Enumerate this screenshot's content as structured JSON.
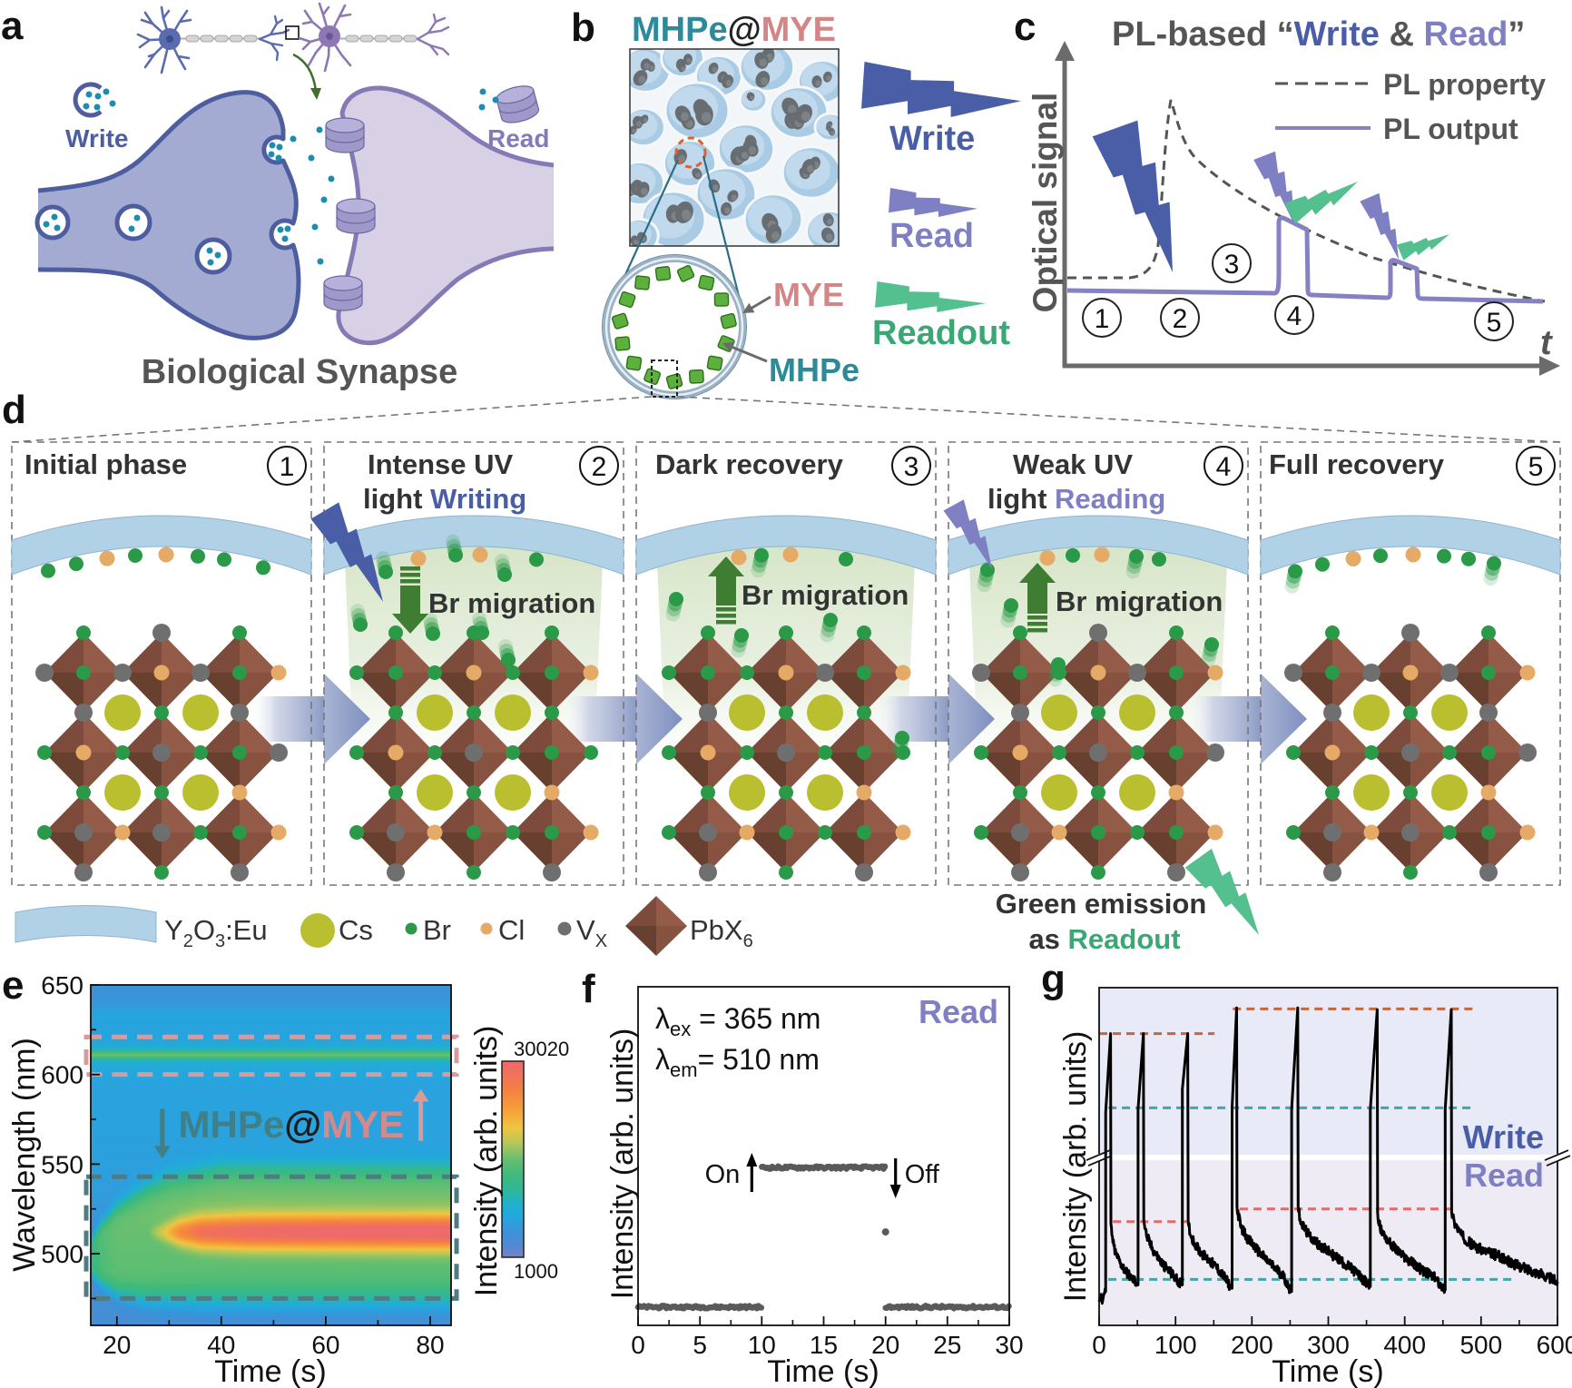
{
  "panel_labels": {
    "a": "a",
    "b": "b",
    "c": "c",
    "d": "d",
    "e": "e",
    "f": "f",
    "g": "g"
  },
  "colors": {
    "write": "#4a5ea8",
    "read": "#7f7fc4",
    "readout_text": "#3aa774",
    "readout_bolt": "#55c08f",
    "mhpe": "#2d8b99",
    "mye": "#d48585",
    "text_dark": "#333333",
    "text_grey": "#555555",
    "br": "#2a9a48",
    "cl": "#e5aa66",
    "vx": "#6f6f6f",
    "cs": "#b9bf2e",
    "coating": "#b1d1e6",
    "presynaptic": "#a3abd3",
    "postsynaptic": "#d8d0e4",
    "neurotransmitter": "#1c8db0"
  },
  "panel_a": {
    "write_label": "Write",
    "read_label": "Read",
    "caption": "Biological Synapse"
  },
  "panel_b": {
    "title": [
      "MHPe",
      "@",
      "MYE"
    ],
    "mye_label": "MYE",
    "mhpe_label": "MHPe",
    "write_label": "Write",
    "read_label": "Read",
    "readout_label": "Readout"
  },
  "panel_c": {
    "title": [
      "PL-based “",
      "Write",
      " & ",
      "Read",
      "”"
    ],
    "y_axis_label": "Optical signal",
    "x_axis_label": "t",
    "legend": [
      {
        "label": "PL property",
        "style": "dashed"
      },
      {
        "label": "PL output",
        "style": "solid"
      }
    ],
    "step_numbers": [
      "1",
      "2",
      "3",
      "4",
      "5"
    ]
  },
  "panel_d": {
    "migration_label": "Br migration",
    "stages": [
      {
        "number": "1",
        "title_line1": "Initial phase",
        "title_line2": null,
        "title_highlight": null,
        "light": null,
        "br_migration": null,
        "surface_atoms": "GGCGCGGG",
        "lattice": {
          "top": "GVG",
          "row1": "VGVCVGC",
          "j12": "VGV",
          "row2": "GCGVGGV",
          "j23": "GGC",
          "row3": "GVCVGGC",
          "bottom": "VGV"
        }
      },
      {
        "number": "2",
        "title_line1": "Intense UV",
        "title_line2": "light ",
        "title_highlight": "Writing",
        "light": "intense UV",
        "br_migration": "down",
        "surface_atoms": "CGCG",
        "lattice": {
          "top": "GGG",
          "row1": "GGGCGGC",
          "j12": "GGG",
          "row2": "GCGVGGG",
          "j23": "GGC",
          "row3": "GVCGGGC",
          "bottom": "VGV"
        }
      },
      {
        "number": "3",
        "title_line1": "Dark recovery",
        "title_line2": null,
        "title_highlight": null,
        "light": null,
        "br_migration": "up",
        "surface_atoms": "CGCG",
        "lattice": {
          "top": "GGG",
          "row1": "GGGCVGC",
          "j12": "VGG",
          "row2": "GCGVGGG",
          "j23": "GGC",
          "row3": "GVCGGGC",
          "bottom": "VGV"
        }
      },
      {
        "number": "4",
        "title_line1": "Weak UV",
        "title_line2": "light ",
        "title_highlight": "Reading",
        "light": "weak UV",
        "br_migration": "up",
        "surface_atoms": "GCGCGG",
        "lattice": {
          "top": "GVG",
          "row1": "VGGCVGC",
          "j12": "VGG",
          "row2": "GCGVGGV",
          "j23": "GGC",
          "row3": "GVCGGGC",
          "bottom": "VGV"
        }
      },
      {
        "number": "5",
        "title_line1": "Full recovery",
        "title_line2": null,
        "title_highlight": null,
        "light": null,
        "br_migration": null,
        "surface_atoms": "GGCGCGGG",
        "lattice": {
          "top": "GVG",
          "row1": "VGVCVGC",
          "j12": "VGV",
          "row2": "GCGVGGV",
          "j23": "GGC",
          "row3": "GVCVGGC",
          "bottom": "VGV"
        }
      }
    ],
    "legend": {
      "coating": [
        "Y",
        "2",
        "O",
        "3",
        ":Eu"
      ],
      "cs": "Cs",
      "br": "Br",
      "cl": "Cl",
      "vx": [
        "V",
        "X"
      ],
      "pbx6": [
        "PbX",
        "6"
      ]
    },
    "green_emission": {
      "line1": "Green emission",
      "line2_prefix": "as ",
      "line2_highlight": "Readout"
    }
  },
  "chart_data": [
    {
      "panel": "e",
      "type": "heatmap",
      "title": "",
      "xlabel": "Time (s)",
      "ylabel": "Wavelength (nm)",
      "xlim": [
        15,
        84
      ],
      "ylim": [
        460,
        650
      ],
      "xticks": [
        20,
        40,
        60,
        80
      ],
      "x_minor_ticks": [
        30,
        50,
        70
      ],
      "yticks": [
        500,
        550,
        600,
        650
      ],
      "y_minor_ticks": [
        475,
        525,
        575,
        625
      ],
      "colorbar": {
        "label": "Intensity (arb. units)",
        "min": 1000,
        "max": 30020,
        "stops": [
          [
            0,
            "#7584c5"
          ],
          [
            0.06,
            "#5289d2"
          ],
          [
            0.13,
            "#3c92d8"
          ],
          [
            0.2,
            "#25a6df"
          ],
          [
            0.27,
            "#21b0cf"
          ],
          [
            0.34,
            "#2fb79b"
          ],
          [
            0.42,
            "#40ba7b"
          ],
          [
            0.5,
            "#66bf70"
          ],
          [
            0.58,
            "#b3c75a"
          ],
          [
            0.66,
            "#f0c540"
          ],
          [
            0.75,
            "#f6a03a"
          ],
          [
            0.84,
            "#f4853f"
          ],
          [
            0.92,
            "#f17358"
          ],
          [
            1,
            "#ee6a6b"
          ]
        ]
      },
      "model": {
        "background": {
          "base": 3600,
          "hump_center_nm": 575,
          "hump_sigma_nm": 55,
          "hump_amplitude": 2800
        },
        "gaussian_bands": [
          {
            "name": "MYE Eu line",
            "center_nm": 611,
            "sigma_nm": 1.8,
            "amplitude": 7200
          },
          {
            "name": "MYE line halo",
            "center_nm": 611,
            "sigma_nm": 8,
            "amplitude": 2300
          },
          {
            "name": "weak band",
            "center_nm": 632,
            "sigma_nm": 4.5,
            "amplitude": 1400
          }
        ],
        "mhpe_broad": {
          "time_s": [
            15,
            17,
            20,
            25,
            30,
            40,
            84
          ],
          "center_nm": [
            498,
            500,
            502,
            505,
            508,
            510.5,
            510.5
          ],
          "half_width_nm": [
            8,
            14,
            20,
            25,
            28,
            30.5,
            30.5
          ],
          "amplitude": [
            7000,
            9500,
            10500,
            10500,
            10500,
            10500,
            10500
          ]
        },
        "mhpe_core": {
          "center_nm": 512,
          "time_s": [
            26,
            29,
            32,
            36,
            45,
            60,
            84
          ],
          "sigma_nm": [
            2,
            3.5,
            5,
            6,
            6.5,
            6.5,
            6.5
          ],
          "amplitude": [
            0,
            4000,
            9000,
            12500,
            14000,
            14800,
            15500
          ]
        }
      },
      "annotations": {
        "regions": [
          {
            "name": "mye-emission-region",
            "nm": [
              600,
              621
            ],
            "color": "#d69b9b"
          },
          {
            "name": "mhpe-emission-region",
            "nm": [
              475,
              543
            ],
            "color": "#4f7c83"
          }
        ],
        "arrows": [
          {
            "name": "mhpe-decrease-arrow",
            "time_s": 28.7,
            "from_nm": 581,
            "to_nm": 553,
            "color": "#3f7f88"
          },
          {
            "name": "mye-increase-arrow",
            "time_s": 78.2,
            "from_nm": 563,
            "to_nm": 592,
            "color": "#d69b9b"
          }
        ],
        "label": {
          "center_time_s": 53.4,
          "baseline_nm": 565,
          "parts": [
            {
              "text": "MHPe",
              "color": "#3f7f88"
            },
            {
              "text": "@",
              "color": "#1b1b1b"
            },
            {
              "text": "MYE",
              "color": "#d48a8a"
            }
          ]
        }
      }
    },
    {
      "panel": "f",
      "type": "scatter",
      "title": "",
      "xlabel": "Time (s)",
      "ylabel": "Intensity (arb. units)",
      "xlim": [
        0,
        30
      ],
      "xticks": [
        0,
        5,
        10,
        15,
        20,
        25,
        30
      ],
      "x_minor_ticks": [
        2.5,
        7.5,
        12.5,
        17.5,
        22.5,
        27.5
      ],
      "ylim": [
        0,
        1
      ],
      "yticks": [],
      "y_scale": "normalized to axis height (no tick labels shown)",
      "series": [
        {
          "name": "PL intensity",
          "color": "#5a5a5a",
          "segments": [
            {
              "x_range": [
                0,
                10
              ],
              "y": 0.054
            },
            {
              "x_range": [
                10,
                20
              ],
              "y": 0.466
            },
            {
              "x_range": [
                20,
                30
              ],
              "y": 0.054
            }
          ],
          "isolated_points": [
            [
              20,
              0.276
            ]
          ]
        }
      ],
      "annotations": {
        "excitation": {
          "symbol": "λ",
          "sub": "ex",
          "text": " = 365 nm"
        },
        "emission": {
          "symbol": "λ",
          "sub": "em",
          "text": "= 510 nm"
        },
        "mode_label": "Read",
        "on": {
          "label": "On",
          "time_s": 10
        },
        "off": {
          "label": "Off",
          "time_s": 20
        }
      }
    },
    {
      "panel": "g",
      "type": "line",
      "title": "",
      "xlabel": "Time (s)",
      "ylabel": "Intensity (arb. units)",
      "xlim": [
        0,
        600
      ],
      "xticks": [
        0,
        100,
        200,
        300,
        400,
        500,
        600
      ],
      "x_minor_ticks": [
        50,
        150,
        250,
        350,
        450,
        550
      ],
      "ylim": [
        0,
        1
      ],
      "yticks": [],
      "y_scale": "normalized to axis height (no tick labels shown)",
      "y_axis_break": [
        0.489,
        0.505
      ],
      "regions": [
        {
          "label": "Write",
          "y_range": [
            0.505,
            1
          ],
          "color": "#e8eaf7",
          "text_color": "#4a5ea8"
        },
        {
          "label": "Read",
          "y_range": [
            0,
            0.489
          ],
          "color": "#eeebf4",
          "text_color": "#7f7fc4"
        }
      ],
      "series": [
        {
          "name": "PL intensity",
          "color": "#000000",
          "points": [
            [
              0,
              0.07
            ],
            [
              2,
              0.09
            ],
            [
              4,
              0.065
            ],
            [
              6,
              0.09
            ],
            [
              8.5,
              0.1
            ],
            [
              8.5,
              0.63
            ],
            [
              15,
              0.864
            ],
            [
              15.5,
              0.3
            ],
            [
              18,
              0.245
            ],
            [
              22,
              0.21
            ],
            [
              28,
              0.185
            ],
            [
              35,
              0.16
            ],
            [
              42,
              0.14
            ],
            [
              50,
              0.125
            ],
            [
              51,
              0.12
            ],
            [
              51,
              0.64
            ],
            [
              58,
              0.864
            ],
            [
              58.5,
              0.31
            ],
            [
              62,
              0.265
            ],
            [
              70,
              0.225
            ],
            [
              80,
              0.19
            ],
            [
              90,
              0.165
            ],
            [
              100,
              0.14
            ],
            [
              108.5,
              0.12
            ],
            [
              109,
              0.12
            ],
            [
              109,
              0.7
            ],
            [
              116,
              0.864
            ],
            [
              116.5,
              0.31
            ],
            [
              120,
              0.265
            ],
            [
              130,
              0.225
            ],
            [
              140,
              0.2
            ],
            [
              150,
              0.18
            ],
            [
              160,
              0.155
            ],
            [
              173.5,
              0.11
            ],
            [
              174,
              0.11
            ],
            [
              174,
              0.645
            ],
            [
              180,
              0.94
            ],
            [
              180.5,
              0.35
            ],
            [
              185,
              0.295
            ],
            [
              195,
              0.255
            ],
            [
              210,
              0.215
            ],
            [
              225,
              0.18
            ],
            [
              240,
              0.15
            ],
            [
              251.5,
              0.1
            ],
            [
              252,
              0.1
            ],
            [
              252,
              0.64
            ],
            [
              260,
              0.94
            ],
            [
              260.5,
              0.345
            ],
            [
              265,
              0.3
            ],
            [
              275,
              0.265
            ],
            [
              290,
              0.235
            ],
            [
              305,
              0.21
            ],
            [
              320,
              0.185
            ],
            [
              335,
              0.16
            ],
            [
              354.5,
              0.115
            ],
            [
              355,
              0.115
            ],
            [
              355,
              0.64
            ],
            [
              364,
              0.935
            ],
            [
              364.5,
              0.335
            ],
            [
              368,
              0.285
            ],
            [
              380,
              0.245
            ],
            [
              395,
              0.21
            ],
            [
              410,
              0.185
            ],
            [
              425,
              0.16
            ],
            [
              440,
              0.14
            ],
            [
              452.5,
              0.105
            ],
            [
              453,
              0.105
            ],
            [
              453,
              0.64
            ],
            [
              461,
              0.935
            ],
            [
              461.5,
              0.335
            ],
            [
              465,
              0.305
            ],
            [
              475,
              0.265
            ],
            [
              490,
              0.235
            ],
            [
              510,
              0.215
            ],
            [
              525,
              0.205
            ],
            [
              530,
              0.195
            ],
            [
              550,
              0.175
            ],
            [
              575,
              0.155
            ],
            [
              600,
              0.13
            ]
          ]
        }
      ],
      "reference_lines": [
        {
          "y": 0.864,
          "x_range": [
            0,
            151
          ],
          "color": "#c8653d"
        },
        {
          "y": 0.937,
          "x_range": [
            175,
            495
          ],
          "color": "#c8653d"
        },
        {
          "y": 0.644,
          "x_range": [
            12,
            490
          ],
          "color": "#3fa7a7"
        },
        {
          "y": 0.307,
          "x_range": [
            18,
            115
          ],
          "color": "#e26a6a"
        },
        {
          "y": 0.345,
          "x_range": [
            184,
            464
          ],
          "color": "#e26a6a"
        },
        {
          "y": 0.136,
          "x_range": [
            12,
            544
          ],
          "color": "#3fa7a7"
        }
      ]
    }
  ]
}
